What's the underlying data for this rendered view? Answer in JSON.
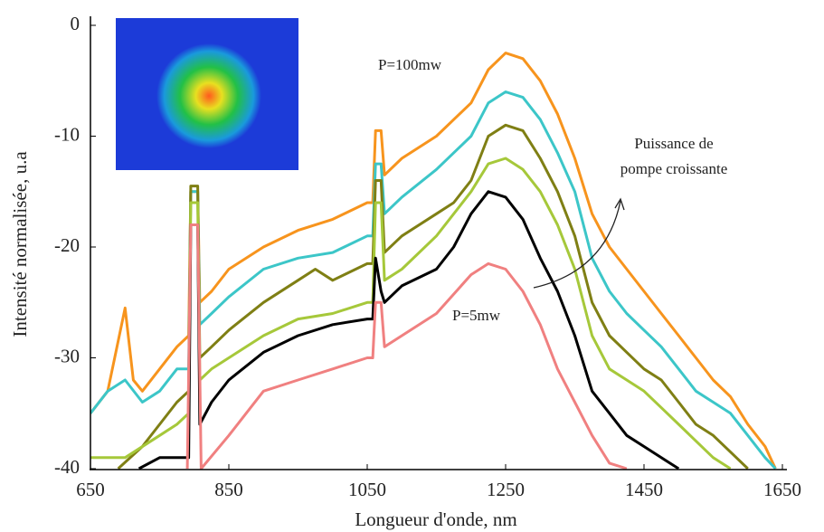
{
  "chart_data": {
    "type": "line",
    "xlabel": "Longueur d'onde, nm",
    "ylabel": "Intensité normalisée, u.a",
    "annotations": [
      "P=100mw",
      "P=5mw",
      "Puissance de",
      "pompe croissante"
    ],
    "xlim": [
      650,
      1650
    ],
    "xticks": [
      650,
      850,
      1050,
      1250,
      1450,
      1650
    ],
    "ylim": [
      -40,
      0
    ],
    "yticks": [
      0,
      -10,
      -20,
      -30,
      -40
    ],
    "series": [
      {
        "color": "#f7941d",
        "x": [
          650,
          675,
          700,
          712,
          725,
          750,
          775,
          792,
          795,
          805,
          808,
          825,
          850,
          900,
          950,
          1000,
          1050,
          1058,
          1062,
          1070,
          1075,
          1100,
          1150,
          1200,
          1225,
          1250,
          1275,
          1300,
          1325,
          1350,
          1375,
          1400,
          1425,
          1450,
          1475,
          1500,
          1525,
          1550,
          1575,
          1600,
          1625,
          1640
        ],
        "values": [
          -35,
          -33,
          -25.5,
          -32,
          -33,
          -31,
          -29,
          -28,
          -15,
          -15,
          -25,
          -24,
          -22,
          -20,
          -18.5,
          -17.5,
          -16,
          -16,
          -9.5,
          -9.5,
          -13.5,
          -12,
          -10,
          -7,
          -4,
          -2.5,
          -3,
          -5,
          -8,
          -12,
          -17,
          -20,
          -22,
          -24,
          -26,
          -28,
          -30,
          -32,
          -33.5,
          -36,
          -38,
          -40
        ]
      },
      {
        "color": "#3cc6c8",
        "x": [
          650,
          675,
          700,
          725,
          750,
          775,
          792,
          795,
          805,
          808,
          825,
          850,
          900,
          950,
          1000,
          1050,
          1058,
          1062,
          1070,
          1075,
          1100,
          1150,
          1200,
          1225,
          1250,
          1275,
          1300,
          1325,
          1350,
          1375,
          1400,
          1425,
          1450,
          1475,
          1500,
          1525,
          1550,
          1575,
          1600,
          1625,
          1640
        ],
        "values": [
          -35,
          -33,
          -32,
          -34,
          -33,
          -31,
          -31,
          -15,
          -15,
          -27,
          -26,
          -24.5,
          -22,
          -21,
          -20.5,
          -19,
          -19,
          -12.5,
          -12.5,
          -17,
          -15.5,
          -13,
          -10,
          -7,
          -6,
          -6.5,
          -8.5,
          -11.5,
          -15,
          -21,
          -24,
          -26,
          -27.5,
          -29,
          -31,
          -33,
          -34,
          -35,
          -37,
          -39,
          -40
        ]
      },
      {
        "color": "#7f7f14",
        "x": [
          690,
          725,
          750,
          775,
          792,
          795,
          805,
          808,
          825,
          850,
          900,
          950,
          975,
          1000,
          1050,
          1058,
          1062,
          1070,
          1075,
          1100,
          1150,
          1175,
          1200,
          1225,
          1250,
          1275,
          1300,
          1325,
          1350,
          1375,
          1400,
          1425,
          1450,
          1475,
          1500,
          1525,
          1550,
          1575,
          1600
        ],
        "values": [
          -40,
          -38,
          -36,
          -34,
          -33,
          -14.5,
          -14.5,
          -30,
          -29,
          -27.5,
          -25,
          -23,
          -22,
          -23,
          -21.5,
          -21.5,
          -14,
          -14,
          -20.5,
          -19,
          -17,
          -16,
          -14,
          -10,
          -9,
          -9.5,
          -12,
          -15,
          -19,
          -25,
          -28,
          -29.5,
          -31,
          -32,
          -34,
          -36,
          -37,
          -38.5,
          -40
        ]
      },
      {
        "color": "#a6c83a",
        "x": [
          650,
          700,
          750,
          775,
          792,
          795,
          805,
          808,
          825,
          850,
          900,
          950,
          1000,
          1050,
          1058,
          1062,
          1070,
          1075,
          1100,
          1150,
          1200,
          1225,
          1250,
          1275,
          1300,
          1325,
          1350,
          1375,
          1400,
          1425,
          1450,
          1475,
          1500,
          1525,
          1550,
          1575
        ],
        "values": [
          -39,
          -39,
          -37,
          -36,
          -35,
          -16,
          -16,
          -32,
          -31,
          -30,
          -28,
          -26.5,
          -26,
          -25,
          -25,
          -16,
          -16,
          -23,
          -22,
          -19,
          -15,
          -12.5,
          -12,
          -13,
          -15,
          -18,
          -22,
          -28,
          -31,
          -32,
          -33,
          -34.5,
          -36,
          -37.5,
          -39,
          -40
        ]
      },
      {
        "color": "#000000",
        "x": [
          720,
          750,
          775,
          792,
          795,
          805,
          808,
          825,
          850,
          900,
          950,
          1000,
          1050,
          1058,
          1062,
          1070,
          1075,
          1100,
          1150,
          1175,
          1200,
          1225,
          1250,
          1275,
          1300,
          1325,
          1350,
          1375,
          1400,
          1425,
          1450,
          1475,
          1500
        ],
        "values": [
          -40,
          -39,
          -39,
          -39,
          -18,
          -18,
          -36,
          -34,
          -32,
          -29.5,
          -28,
          -27,
          -26.5,
          -26.5,
          -21,
          -24,
          -25,
          -23.5,
          -22,
          -20,
          -17,
          -15,
          -15.5,
          -17.5,
          -21,
          -24,
          -28,
          -33,
          -35,
          -37,
          -38,
          -39,
          -40
        ]
      },
      {
        "color": "#f08080",
        "x": [
          790,
          795,
          805,
          810,
          850,
          900,
          950,
          1000,
          1050,
          1058,
          1062,
          1070,
          1075,
          1100,
          1150,
          1200,
          1225,
          1250,
          1275,
          1300,
          1325,
          1350,
          1375,
          1400,
          1425
        ],
        "values": [
          -40,
          -18,
          -18,
          -40,
          -37,
          -33,
          -32,
          -31,
          -30,
          -30,
          -25,
          -25,
          -29,
          -28,
          -26,
          -22.5,
          -21.5,
          -22,
          -24,
          -27,
          -31,
          -34,
          -37,
          -39.5,
          -40
        ]
      }
    ]
  }
}
